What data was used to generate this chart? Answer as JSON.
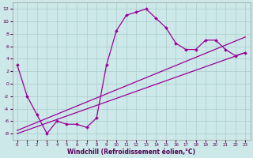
{
  "xlabel": "Windchill (Refroidissement éolien,°C)",
  "background_color": "#cce8e8",
  "grid_color": "#aacccc",
  "line_color": "#990099",
  "xlim": [
    -0.5,
    23.5
  ],
  "ylim": [
    -9,
    13
  ],
  "xticks": [
    0,
    1,
    2,
    3,
    4,
    5,
    6,
    7,
    8,
    9,
    10,
    11,
    12,
    13,
    14,
    15,
    16,
    17,
    18,
    19,
    20,
    21,
    22,
    23
  ],
  "yticks": [
    -8,
    -6,
    -4,
    -2,
    0,
    2,
    4,
    6,
    8,
    10,
    12
  ],
  "line1_x": [
    0,
    1,
    2,
    3,
    4,
    5,
    6,
    7,
    8,
    9,
    10,
    11,
    12,
    13,
    14,
    15,
    16,
    17,
    18,
    19,
    20,
    21,
    22,
    23
  ],
  "line1_y": [
    3,
    -2,
    -5,
    -8,
    -6,
    -6.5,
    -6.5,
    -7,
    -5.5,
    3,
    8.5,
    11,
    11.5,
    12,
    10.5,
    9,
    6.5,
    5.5,
    5.5,
    7,
    7,
    5.5,
    4.5,
    5
  ],
  "line2_x": [
    0,
    23
  ],
  "line2_y": [
    -8,
    5
  ],
  "line3_x": [
    0,
    23
  ],
  "line3_y": [
    -7.5,
    7.5
  ]
}
